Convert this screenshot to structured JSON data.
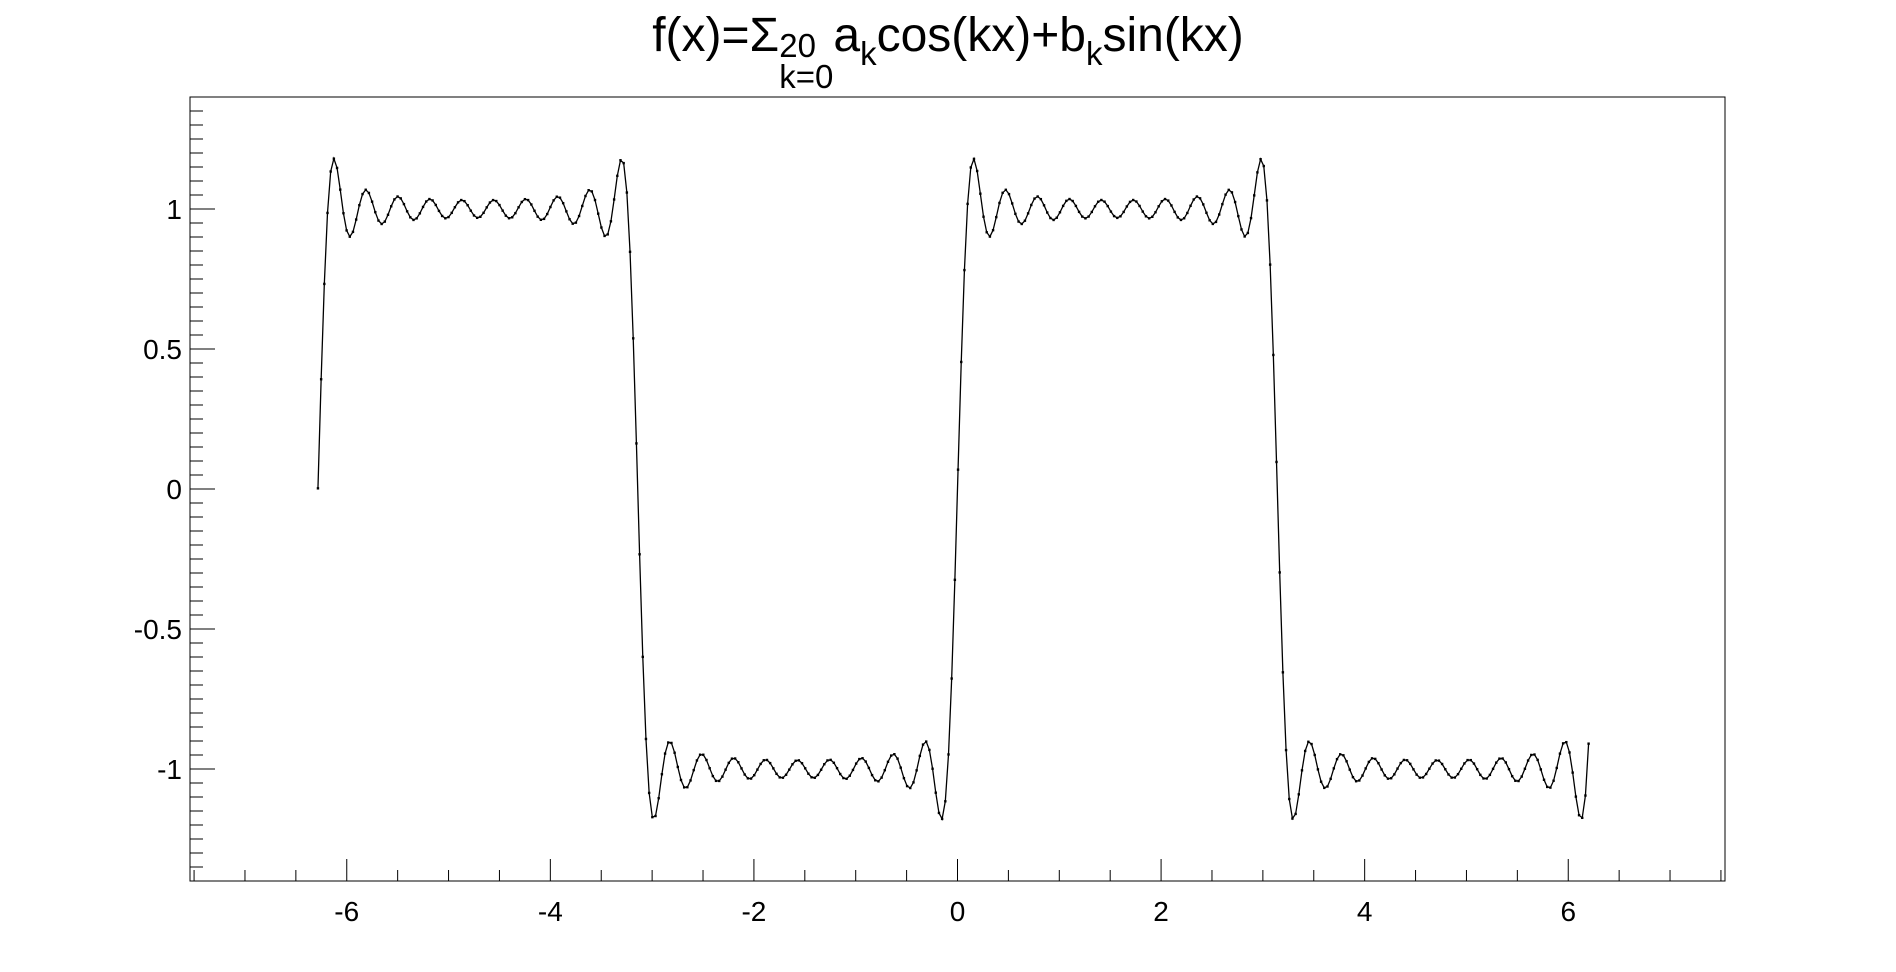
{
  "chart_data": {
    "type": "line",
    "title": {
      "prefix": "f(x)=Σ",
      "sum_lower": "k=0",
      "sum_upper": "20",
      "a": "a",
      "a_sub": "k",
      "mid": "cos(kx)+b",
      "b_sub": "k",
      "suffix": "sin(kx)"
    },
    "xlabel": "",
    "ylabel": "",
    "xlim": [
      -7.54,
      7.54
    ],
    "ylim": [
      -1.4,
      1.4
    ],
    "x_ticks": [
      -6,
      -4,
      -2,
      0,
      2,
      4,
      6
    ],
    "x_tick_labels": [
      "-6",
      "-4",
      "-2",
      "0",
      "2",
      "4",
      "6"
    ],
    "y_ticks": [
      -1,
      -0.5,
      0,
      0.5,
      1
    ],
    "y_tick_labels": [
      "-1",
      "-0.5",
      "0",
      "0.5",
      "1"
    ],
    "grid": false,
    "legend": "none",
    "series": [
      {
        "function": "square-wave Fourier partial sum, odd sine terms up to k=20",
        "x_range": [
          -6.283,
          6.2
        ],
        "n_points": 400,
        "color": "#000000",
        "markers": true
      }
    ]
  }
}
